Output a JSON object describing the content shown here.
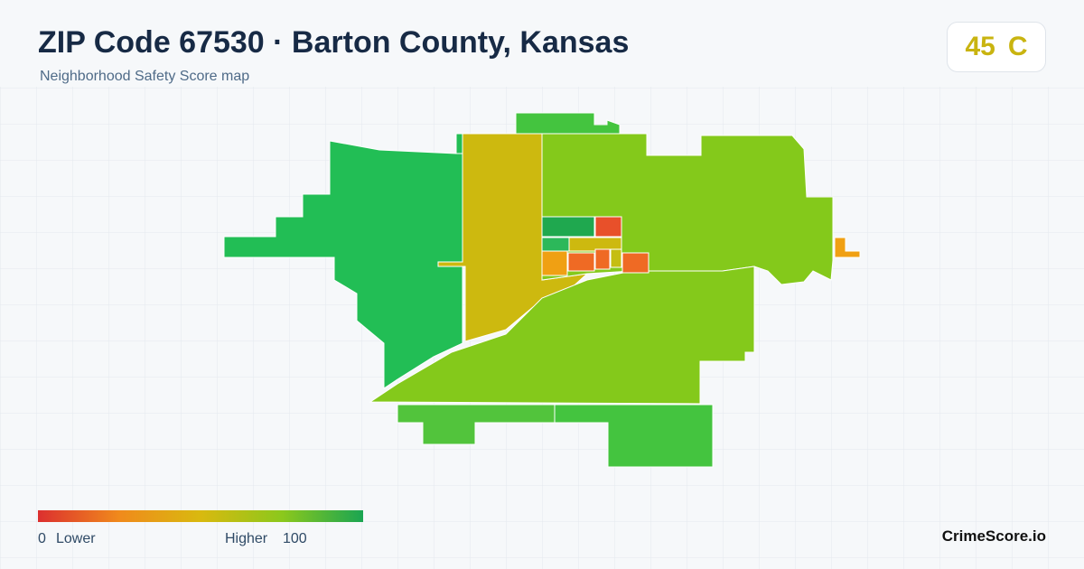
{
  "header": {
    "title": "ZIP Code 67530 · Barton County, Kansas",
    "subtitle": "Neighborhood Safety Score map"
  },
  "score": {
    "value": 45,
    "grade": "C"
  },
  "legend": {
    "min": 0,
    "min_label": "Lower",
    "max_label": "Higher",
    "max": 100
  },
  "brand": "CrimeScore.io"
}
